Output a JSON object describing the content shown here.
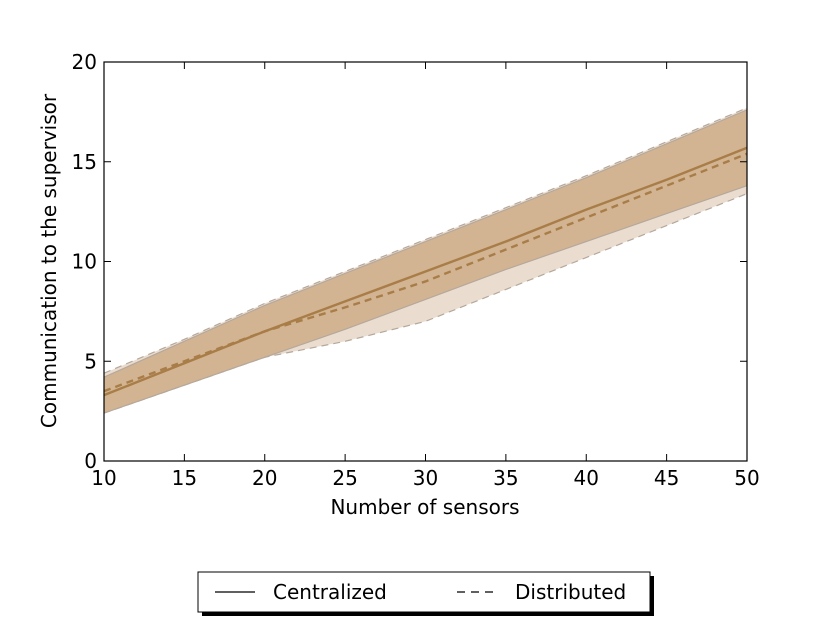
{
  "chart_data": {
    "type": "line",
    "xlabel": "Number of sensors",
    "ylabel": "Communication to the supervisor",
    "xlim": [
      10,
      50
    ],
    "ylim": [
      0,
      20
    ],
    "xticks": [
      "10",
      "15",
      "20",
      "25",
      "30",
      "35",
      "40",
      "45",
      "50"
    ],
    "yticks": [
      "0",
      "5",
      "10",
      "15",
      "20"
    ],
    "grid": false,
    "legend_position": "bottom-center",
    "colors": {
      "line": "#a87d48",
      "band_centralized": "#c9a77e",
      "band_distributed": "#d8c0a6",
      "band_edge": "#b5a89b"
    },
    "x": [
      10,
      15,
      20,
      25,
      30,
      35,
      40,
      45,
      50
    ],
    "series": [
      {
        "name": "Centralized",
        "style": "solid",
        "values": [
          3.3,
          4.9,
          6.5,
          8.0,
          9.5,
          11.0,
          12.6,
          14.1,
          15.7
        ],
        "lower": [
          2.4,
          3.8,
          5.2,
          6.6,
          8.1,
          9.6,
          11.0,
          12.4,
          13.8
        ],
        "upper": [
          4.2,
          6.0,
          7.8,
          9.4,
          11.0,
          12.6,
          14.2,
          15.9,
          17.6
        ]
      },
      {
        "name": "Distributed",
        "style": "dashed",
        "values": [
          3.5,
          5.0,
          6.5,
          7.7,
          9.0,
          10.6,
          12.2,
          13.8,
          15.4
        ],
        "lower": [
          2.4,
          3.8,
          5.2,
          6.0,
          7.0,
          8.6,
          10.2,
          11.8,
          13.4
        ],
        "upper": [
          4.4,
          6.1,
          7.9,
          9.5,
          11.1,
          12.7,
          14.3,
          16.0,
          17.7
        ]
      }
    ]
  }
}
